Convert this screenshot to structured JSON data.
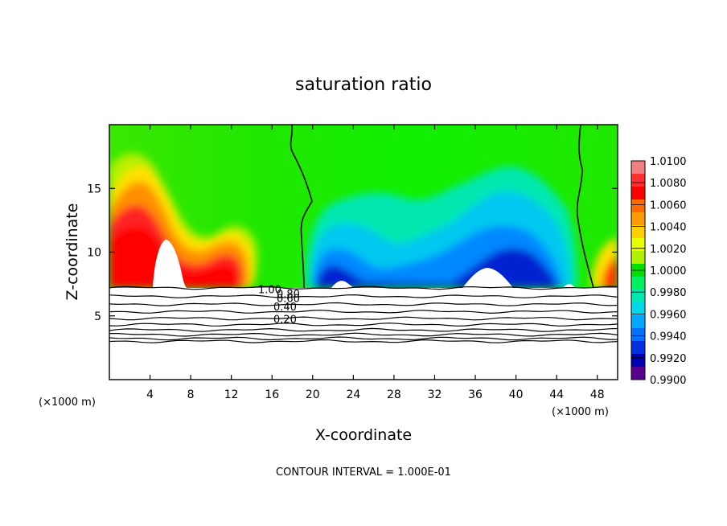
{
  "chart_data": {
    "type": "heatmap",
    "title": "saturation ratio",
    "xlabel": "X-coordinate",
    "ylabel": "Z-coordinate",
    "x_unit": "(×1000 m)",
    "y_unit": "(×1000 m)",
    "xlim": [
      0,
      50
    ],
    "ylim": [
      0,
      20
    ],
    "x_ticks": [
      4,
      8,
      12,
      16,
      20,
      24,
      28,
      32,
      36,
      40,
      44,
      48
    ],
    "y_ticks": [
      5,
      10,
      15
    ],
    "colorbar": {
      "range": [
        0.99,
        1.01
      ],
      "ticks": [
        "1.0100",
        "1.0080",
        "1.0060",
        "1.0040",
        "1.0020",
        "1.0000",
        "0.9980",
        "0.9960",
        "0.9940",
        "0.9920",
        "0.9900"
      ],
      "colors": [
        "#f08080",
        "#ff3030",
        "#ff0000",
        "#ff6a00",
        "#ff9a00",
        "#ffd000",
        "#e8ff00",
        "#b0f000",
        "#00e000",
        "#00f060",
        "#00e8b0",
        "#00d8e8",
        "#00a8ff",
        "#0070ff",
        "#0030e0",
        "#0000b0",
        "#5a0090"
      ]
    },
    "contour_labels": [
      "1.00",
      "0.80",
      "0.60",
      "0.40",
      "0.20"
    ],
    "contour_levels_below_cloud": [
      1.0,
      0.9,
      0.8,
      0.7,
      0.6,
      0.5,
      0.4,
      0.3,
      0.2,
      0.1
    ],
    "neutral_contour": 1.0,
    "contour_interval_text": "CONTOUR INTERVAL = 1.000E-01"
  }
}
